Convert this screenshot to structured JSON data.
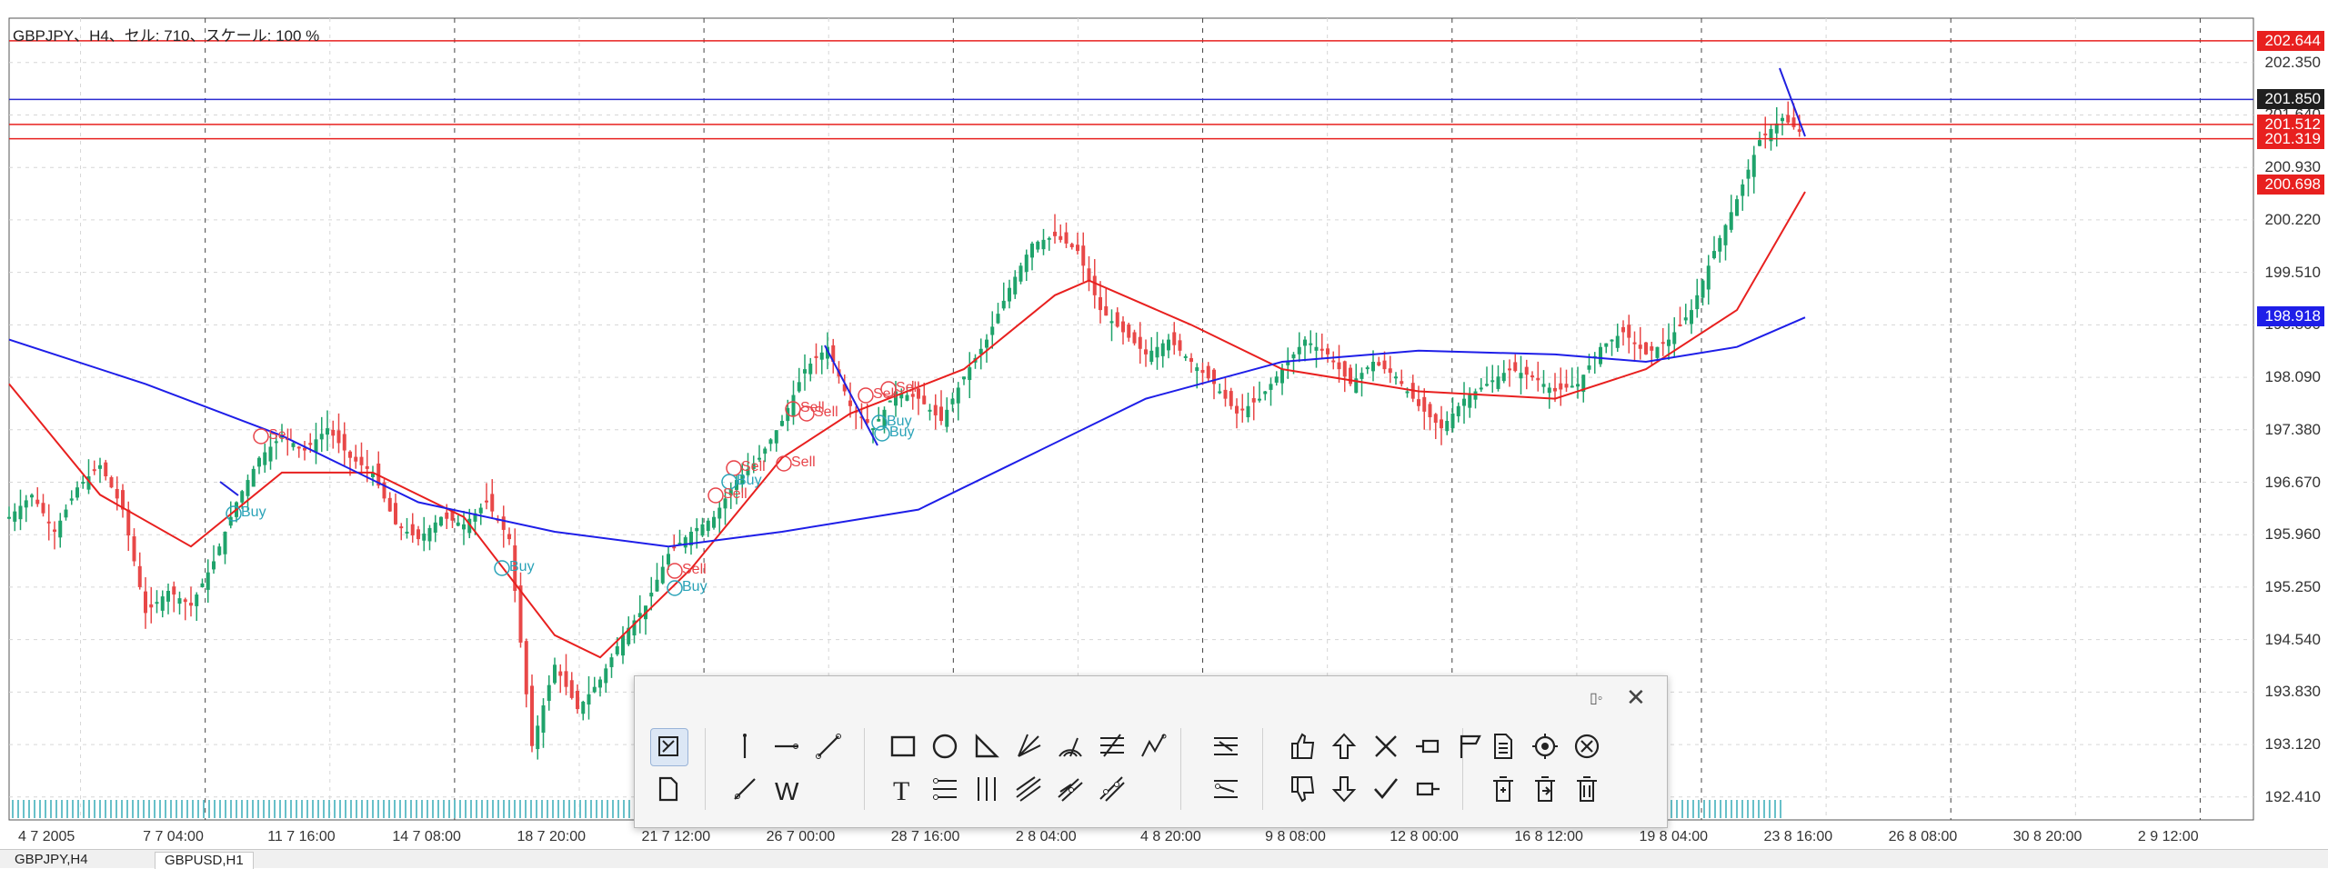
{
  "chart_info": "GBPJPY、H4、セル: 710、スケール: 100 %",
  "price_tags": [
    {
      "label": "202.644",
      "value": 202.644,
      "color": "#e8201f"
    },
    {
      "label": "201.850",
      "value": 201.85,
      "color": "#1f1f1f"
    },
    {
      "label": "201.512",
      "value": 201.512,
      "color": "#e8201f"
    },
    {
      "label": "201.319",
      "value": 201.319,
      "color": "#e8201f"
    },
    {
      "label": "200.698",
      "value": 200.698,
      "color": "#e8201f"
    },
    {
      "label": "198.918",
      "value": 198.918,
      "color": "#1e1ee8"
    }
  ],
  "signals": [
    {
      "text": "Sell",
      "type": "sell"
    },
    {
      "text": "Buy",
      "type": "buy"
    },
    {
      "text": "Sell",
      "type": "sell"
    },
    {
      "text": "Sell",
      "type": "sell"
    },
    {
      "text": "Buy",
      "type": "buy"
    },
    {
      "text": "Sell",
      "type": "sell"
    },
    {
      "text": "Sell",
      "type": "sell"
    },
    {
      "text": "Buy",
      "type": "buy"
    },
    {
      "text": "Sell",
      "type": "sell"
    },
    {
      "text": "Buy",
      "type": "buy"
    },
    {
      "text": "Buy",
      "type": "buy"
    },
    {
      "text": "Sell",
      "type": "sell"
    },
    {
      "text": "Sell",
      "type": "sell"
    },
    {
      "text": "Buy",
      "type": "buy"
    },
    {
      "text": "Sell",
      "type": "sell"
    }
  ],
  "tabs": [
    "GBPJPY,H4",
    "GBPUSD,H1"
  ],
  "toolbar": {
    "drag_icon": "drag-handle-icon",
    "close_icon": "close-icon",
    "groups": [
      [
        "crosshair-select-icon",
        "new-page-icon"
      ],
      [
        "vertical-line-icon",
        "horizontal-line-icon",
        "trend-line-icon",
        "ray-line-icon",
        "wave-w-icon"
      ],
      [
        "rectangle-icon",
        "ellipse-icon",
        "triangle-icon",
        "fan-icon",
        "arc-icon",
        "channel-icon",
        "zigzag-icon",
        "text-icon",
        "fibo-lines-icon",
        "vertical-cycles-icon",
        "pitchfork-icon",
        "regression-icon",
        "andrews-icon"
      ],
      [
        "fibo-expansion-icon",
        "fibo-timezones-icon"
      ],
      [
        "thumbs-up-icon",
        "arrow-up-icon",
        "cross-icon",
        "right-price-label-icon",
        "flag-icon",
        "thumbs-down-icon",
        "arrow-down-icon",
        "check-icon",
        "left-price-label-icon"
      ],
      [
        "document-icon",
        "target-icon",
        "delete-selected-icon",
        "edit-icon",
        "export-icon",
        "trash-icon"
      ]
    ]
  },
  "chart_data": {
    "type": "candlestick",
    "title": "",
    "symbol": "GBPJPY",
    "timeframe": "H4",
    "ylim": [
      192.1,
      202.95
    ],
    "y_ticks": [
      "202.350",
      "201.640",
      "200.930",
      "200.220",
      "199.510",
      "198.800",
      "198.090",
      "197.380",
      "196.670",
      "195.960",
      "195.250",
      "194.540",
      "193.830",
      "193.120",
      "192.410"
    ],
    "x_ticks": [
      "4 7 2005",
      "7 7 04:00",
      "11 7 16:00",
      "14 7 08:00",
      "18 7 20:00",
      "21 7 12:00",
      "26 7 00:00",
      "28 7 16:00",
      "2 8 04:00",
      "4 8 20:00",
      "9 8 08:00",
      "12 8 00:00",
      "16 8 12:00",
      "19 8 04:00",
      "23 8 16:00",
      "26 8 08:00",
      "30 8 20:00",
      "2 9 12:00"
    ],
    "horizontal_lines": [
      202.644,
      201.85,
      201.512,
      201.319
    ],
    "close_path": [
      [
        0,
        196.2
      ],
      [
        10,
        196.5
      ],
      [
        20,
        196.0
      ],
      [
        30,
        196.6
      ],
      [
        40,
        196.9
      ],
      [
        50,
        196.3
      ],
      [
        60,
        194.9
      ],
      [
        70,
        195.2
      ],
      [
        80,
        195.0
      ],
      [
        90,
        195.6
      ],
      [
        100,
        196.4
      ],
      [
        110,
        197.0
      ],
      [
        120,
        197.3
      ],
      [
        130,
        197.1
      ],
      [
        140,
        197.4
      ],
      [
        150,
        197.0
      ],
      [
        160,
        196.8
      ],
      [
        170,
        196.1
      ],
      [
        180,
        195.9
      ],
      [
        190,
        196.2
      ],
      [
        200,
        196.1
      ],
      [
        210,
        196.4
      ],
      [
        220,
        195.9
      ],
      [
        230,
        193.1
      ],
      [
        240,
        194.2
      ],
      [
        250,
        193.6
      ],
      [
        260,
        194.0
      ],
      [
        270,
        194.6
      ],
      [
        280,
        195.0
      ],
      [
        290,
        195.7
      ],
      [
        300,
        196.0
      ],
      [
        310,
        196.2
      ],
      [
        320,
        196.7
      ],
      [
        330,
        197.0
      ],
      [
        340,
        197.5
      ],
      [
        350,
        198.2
      ],
      [
        360,
        198.5
      ],
      [
        370,
        197.7
      ],
      [
        380,
        197.4
      ],
      [
        390,
        197.9
      ],
      [
        400,
        197.8
      ],
      [
        410,
        197.5
      ],
      [
        420,
        198.1
      ],
      [
        430,
        198.6
      ],
      [
        440,
        199.3
      ],
      [
        450,
        199.9
      ],
      [
        460,
        200.0
      ],
      [
        470,
        199.8
      ],
      [
        480,
        199.0
      ],
      [
        490,
        198.7
      ],
      [
        500,
        198.4
      ],
      [
        510,
        198.6
      ],
      [
        520,
        198.3
      ],
      [
        530,
        198.0
      ],
      [
        540,
        197.6
      ],
      [
        550,
        197.8
      ],
      [
        560,
        198.2
      ],
      [
        570,
        198.6
      ],
      [
        580,
        198.4
      ],
      [
        590,
        198.0
      ],
      [
        600,
        198.3
      ],
      [
        610,
        198.1
      ],
      [
        620,
        197.7
      ],
      [
        630,
        197.4
      ],
      [
        640,
        197.8
      ],
      [
        650,
        198.0
      ],
      [
        660,
        198.2
      ],
      [
        670,
        198.1
      ],
      [
        680,
        197.9
      ],
      [
        690,
        198.0
      ],
      [
        700,
        198.5
      ],
      [
        710,
        198.7
      ],
      [
        720,
        198.4
      ],
      [
        730,
        198.6
      ],
      [
        740,
        199.0
      ],
      [
        750,
        199.8
      ],
      [
        760,
        200.5
      ],
      [
        770,
        201.3
      ],
      [
        780,
        201.6
      ],
      [
        790,
        201.35
      ]
    ],
    "ma_series": [
      {
        "color": "#e8201f",
        "values": [
          [
            0,
            198.0
          ],
          [
            40,
            196.5
          ],
          [
            80,
            195.8
          ],
          [
            120,
            196.8
          ],
          [
            160,
            196.8
          ],
          [
            200,
            196.2
          ],
          [
            240,
            194.6
          ],
          [
            260,
            194.3
          ],
          [
            300,
            195.5
          ],
          [
            340,
            197.0
          ],
          [
            370,
            197.6
          ],
          [
            420,
            198.2
          ],
          [
            460,
            199.2
          ],
          [
            475,
            199.4
          ],
          [
            520,
            198.8
          ],
          [
            560,
            198.2
          ],
          [
            620,
            197.9
          ],
          [
            680,
            197.8
          ],
          [
            720,
            198.2
          ],
          [
            760,
            199.0
          ],
          [
            790,
            200.6
          ]
        ]
      },
      {
        "color": "#1e1ee8",
        "values": [
          [
            0,
            198.6
          ],
          [
            60,
            198.0
          ],
          [
            120,
            197.3
          ],
          [
            180,
            196.4
          ],
          [
            240,
            196.0
          ],
          [
            290,
            195.8
          ],
          [
            340,
            196.0
          ],
          [
            400,
            196.3
          ],
          [
            440,
            196.9
          ],
          [
            500,
            197.8
          ],
          [
            560,
            198.3
          ],
          [
            620,
            198.45
          ],
          [
            680,
            198.4
          ],
          [
            720,
            198.3
          ],
          [
            760,
            198.5
          ],
          [
            790,
            198.9
          ]
        ]
      }
    ]
  }
}
